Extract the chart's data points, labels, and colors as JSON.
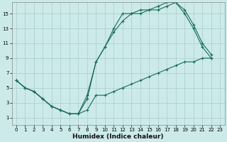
{
  "xlabel": "Humidex (Indice chaleur)",
  "bg_color": "#cceaea",
  "grid_color": "#aacccc",
  "line_color": "#1a6b5a",
  "xlim": [
    -0.5,
    23.5
  ],
  "ylim": [
    0,
    16.5
  ],
  "xticks": [
    0,
    1,
    2,
    3,
    4,
    5,
    6,
    7,
    8,
    9,
    10,
    11,
    12,
    13,
    14,
    15,
    16,
    17,
    18,
    19,
    20,
    21,
    22,
    23
  ],
  "yticks": [
    1,
    3,
    5,
    7,
    9,
    11,
    13,
    15
  ],
  "line1_x": [
    0,
    1,
    2,
    3,
    4,
    5,
    6,
    7,
    8,
    9,
    10,
    11,
    12,
    13,
    14,
    15,
    16,
    17,
    18,
    19,
    20,
    21,
    22
  ],
  "line1_y": [
    6,
    5,
    4.5,
    3.5,
    2.5,
    2,
    1.5,
    1.5,
    2,
    4,
    4,
    4.5,
    5,
    5.5,
    6,
    6.5,
    7,
    7.5,
    8,
    8.5,
    8.5,
    9,
    9
  ],
  "line2_x": [
    0,
    1,
    2,
    3,
    4,
    5,
    6,
    7,
    8,
    9,
    10,
    11,
    12,
    13,
    14,
    15,
    16,
    17,
    18,
    19,
    20,
    21,
    22
  ],
  "line2_y": [
    6,
    5,
    4.5,
    3.5,
    2.5,
    2,
    1.5,
    1.5,
    3.5,
    8.5,
    10.5,
    12.5,
    14,
    15,
    15,
    15.5,
    15.5,
    16,
    16.5,
    15.5,
    13.5,
    11,
    9.5
  ],
  "line3_x": [
    0,
    1,
    2,
    3,
    4,
    5,
    6,
    7,
    8,
    9,
    10,
    11,
    12,
    13,
    14,
    15,
    16,
    17,
    18,
    19,
    20,
    21,
    22
  ],
  "line3_y": [
    6,
    5,
    4.5,
    3.5,
    2.5,
    2,
    1.5,
    1.5,
    4,
    8.5,
    10.5,
    13,
    15,
    15,
    15.5,
    15.5,
    16,
    16.5,
    16.5,
    15,
    13,
    10.5,
    9
  ],
  "xlabel_fontsize": 6.5,
  "tick_fontsize": 5
}
